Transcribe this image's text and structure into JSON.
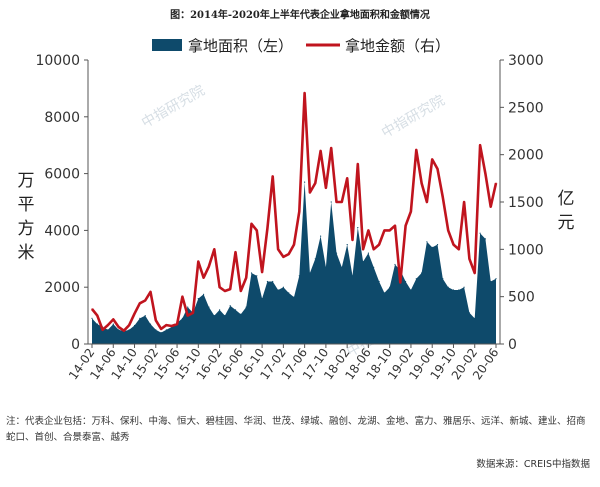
{
  "title": "图：2014年-2020年上半年代表企业拿地面积和金额情况",
  "note": "注：代表企业包括：万科、保利、中海、恒大、碧桂园、华润、世茂、绿城、融创、龙湖、金地、富力、雅居乐、远洋、新城、建业、招商蛇口、首创、合景泰富、越秀",
  "source": "数据来源：CREIS中指数据",
  "watermark": "中指研究院",
  "colors": {
    "area": "#0e4a6b",
    "line": "#c0141e"
  },
  "chart_data": {
    "type": "area",
    "x": [
      "14-02",
      "14-03",
      "14-04",
      "14-05",
      "14-06",
      "14-07",
      "14-08",
      "14-09",
      "14-10",
      "14-11",
      "14-12",
      "15-01",
      "15-02",
      "15-03",
      "15-04",
      "15-05",
      "15-06",
      "15-07",
      "15-08",
      "15-09",
      "15-10",
      "15-11",
      "15-12",
      "16-01",
      "16-02",
      "16-03",
      "16-04",
      "16-05",
      "16-06",
      "16-07",
      "16-08",
      "16-09",
      "16-10",
      "16-11",
      "16-12",
      "17-01",
      "17-02",
      "17-03",
      "17-04",
      "17-05",
      "17-06",
      "17-07",
      "17-08",
      "17-09",
      "17-10",
      "17-11",
      "17-12",
      "18-01",
      "18-02",
      "18-03",
      "18-04",
      "18-05",
      "18-06",
      "18-07",
      "18-08",
      "18-09",
      "18-10",
      "18-11",
      "18-12",
      "19-01",
      "19-02",
      "19-03",
      "19-04",
      "19-05",
      "19-06",
      "19-07",
      "19-08",
      "19-09",
      "19-10",
      "19-11",
      "19-12",
      "20-01",
      "20-02",
      "20-03",
      "20-04",
      "20-05",
      "20-06"
    ],
    "x_tick_labels": [
      "14-02",
      "14-06",
      "14-10",
      "15-02",
      "15-06",
      "15-10",
      "16-02",
      "16-06",
      "16-10",
      "17-02",
      "17-06",
      "17-10",
      "18-02",
      "18-06",
      "18-10",
      "19-02",
      "19-06",
      "19-10",
      "20-02",
      "20-06"
    ],
    "series": [
      {
        "name": "拿地面积（左）",
        "axis": "left",
        "type": "area",
        "values": [
          900,
          700,
          600,
          500,
          700,
          500,
          450,
          500,
          650,
          900,
          1000,
          700,
          500,
          400,
          500,
          600,
          750,
          900,
          1300,
          1100,
          1600,
          1750,
          1300,
          1000,
          1200,
          1000,
          1350,
          1200,
          1050,
          1300,
          2500,
          2400,
          1600,
          2200,
          2200,
          1900,
          2000,
          1800,
          1650,
          2400,
          5700,
          2500,
          3000,
          3800,
          2700,
          5000,
          3200,
          2700,
          3500,
          2400,
          4100,
          2900,
          3200,
          2700,
          2200,
          1800,
          2000,
          2800,
          2600,
          2200,
          1900,
          2300,
          2500,
          3600,
          3400,
          3500,
          2300,
          2000,
          1900,
          1900,
          2000,
          1100,
          900,
          3900,
          3700,
          2200,
          2300
        ]
      },
      {
        "name": "拿地金额（右）",
        "axis": "right",
        "type": "line",
        "values": [
          370,
          300,
          150,
          200,
          260,
          180,
          140,
          200,
          320,
          430,
          460,
          550,
          250,
          160,
          200,
          190,
          210,
          500,
          300,
          330,
          870,
          700,
          820,
          1000,
          600,
          560,
          580,
          970,
          560,
          700,
          1270,
          1200,
          760,
          1220,
          1770,
          1000,
          920,
          950,
          1050,
          1400,
          2650,
          1600,
          1700,
          2040,
          1650,
          2070,
          1500,
          1500,
          1750,
          1100,
          1900,
          1000,
          1200,
          1000,
          1050,
          1200,
          1200,
          1250,
          650,
          1250,
          1400,
          2050,
          1700,
          1500,
          1950,
          1850,
          1550,
          1200,
          1050,
          1000,
          1500,
          900,
          750,
          2100,
          1800,
          1450,
          1700
        ]
      }
    ],
    "legend": [
      "拿地面积（左）",
      "拿地金额（右）"
    ],
    "legend_position": "top",
    "ylabel_left": "万平方米",
    "ylabel_right": "亿元",
    "ylim_left": [
      0,
      10000
    ],
    "ylim_right": [
      0,
      3000
    ],
    "yticks_left": [
      "0",
      "2000",
      "4000",
      "6000",
      "8000",
      "10000"
    ],
    "yticks_right": [
      "0",
      "500",
      "1000",
      "1500",
      "2000",
      "2500",
      "3000"
    ],
    "grid": false
  }
}
